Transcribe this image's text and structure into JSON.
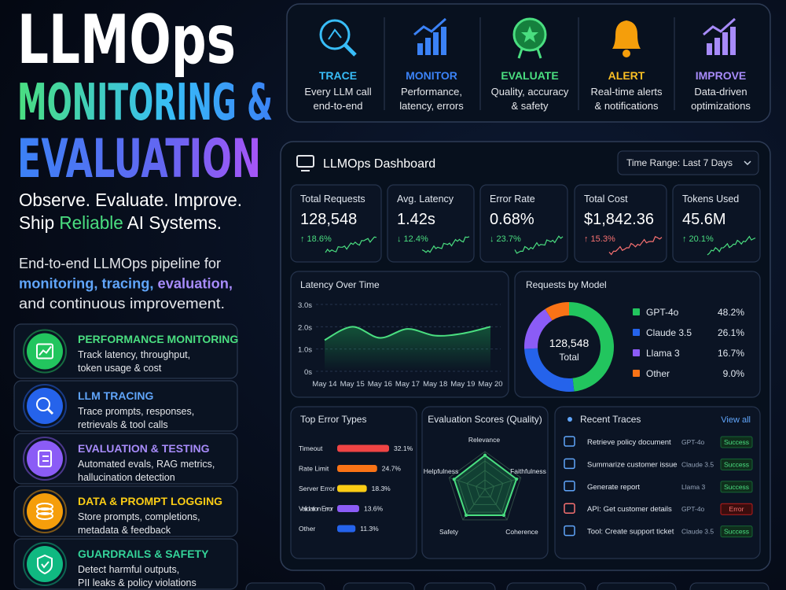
{
  "hero": {
    "title": "LLMOps",
    "title_line2": "MONITORING &",
    "title_line3": "EVALUATION",
    "tagline_1": "Observe. Evaluate. Improve.",
    "tagline_2": [
      "Ship ",
      "Reliable",
      " AI Systems."
    ],
    "description": [
      [
        "End-to-end LLMOps pipeline for"
      ],
      [
        "monitoring, ",
        "tracing, ",
        "evaluation,"
      ],
      [
        "and continuous improvement."
      ]
    ]
  },
  "features": [
    {
      "title": "PERFORMANCE MONITORING",
      "lines": [
        "Track latency, throughput,",
        "token usage & cost"
      ],
      "color": "#22c55e",
      "title_color": "#4ade80"
    },
    {
      "title": "LLM TRACING",
      "lines": [
        "Trace prompts, responses,",
        "retrievals & tool calls"
      ],
      "color": "#2563eb",
      "title_color": "#60a5fa"
    },
    {
      "title": "EVALUATION & TESTING",
      "lines": [
        "Automated evals, RAG metrics,",
        "hallucination detection"
      ],
      "color": "#8b5cf6",
      "title_color": "#a78bfa"
    },
    {
      "title": "DATA & PROMPT LOGGING",
      "lines": [
        "Store prompts, completions,",
        "metadata & feedback"
      ],
      "color": "#f59e0b",
      "title_color": "#facc15"
    },
    {
      "title": "GUARDRAILS & SAFETY",
      "lines": [
        "Detect harmful outputs,",
        "PII leaks & policy violations"
      ],
      "color": "#10b981",
      "title_color": "#34d399"
    }
  ],
  "pipeline": [
    {
      "title": "TRACE",
      "lines": [
        "Every LLM call",
        "end-to-end"
      ],
      "color": "#38bdf8"
    },
    {
      "title": "MONITOR",
      "lines": [
        "Performance,",
        "latency, errors"
      ],
      "color": "#3b82f6"
    },
    {
      "title": "EVALUATE",
      "lines": [
        "Quality, accuracy",
        "& safety"
      ],
      "color": "#4ade80"
    },
    {
      "title": "ALERT",
      "lines": [
        "Real-time alerts",
        "& notifications"
      ],
      "color": "#fbbf24"
    },
    {
      "title": "IMPROVE",
      "lines": [
        "Data-driven",
        "optimizations"
      ],
      "color": "#a78bfa"
    }
  ],
  "dashboard": {
    "title": "LLMOps Dashboard",
    "time_range": "Time Range: Last 7 Days",
    "kpis": [
      {
        "label": "Total Requests",
        "value": "128,548",
        "change": "↑ 18.6%",
        "change_color": "#4ade80"
      },
      {
        "label": "Avg. Latency",
        "value": "1.42s",
        "change": "↓ 12.4%",
        "change_color": "#4ade80"
      },
      {
        "label": "Error Rate",
        "value": "0.68%",
        "change": "↓ 23.7%",
        "change_color": "#4ade80"
      },
      {
        "label": "Total Cost",
        "value": "$1,842.36",
        "change": "↑ 15.3%",
        "change_color": "#f87171"
      },
      {
        "label": "Tokens Used",
        "value": "45.6M",
        "change": "↑ 20.1%",
        "change_color": "#4ade80"
      }
    ]
  },
  "chart_data": [
    {
      "type": "line",
      "title": "Latency Over Time",
      "categories": [
        "May 14",
        "May 15",
        "May 16",
        "May 17",
        "May 18",
        "May 19",
        "May 20"
      ],
      "values": [
        1.4,
        2.0,
        1.5,
        1.9,
        1.6,
        1.7,
        2.0
      ],
      "color": "#4ade80",
      "ylim": [
        0,
        3
      ],
      "yticks": [
        {
          "value": 0,
          "label": "0s"
        },
        {
          "value": 1,
          "label": "1.0s"
        },
        {
          "value": 2,
          "label": "2.0s"
        },
        {
          "value": 3,
          "label": "3.0s"
        }
      ],
      "grid": true
    },
    {
      "type": "donut",
      "title": "Requests by Model",
      "categories": [
        "GPT-4o",
        "Claude 3.5",
        "Llama 3",
        "Other"
      ],
      "values": [
        48.2,
        26.1,
        16.7,
        9.0
      ],
      "value_labels": [
        "48.2%",
        "26.1%",
        "16.7%",
        "9.0%"
      ],
      "colors": [
        "#22c55e",
        "#2563eb",
        "#8b5cf6",
        "#f97316"
      ],
      "center_value": "128,548",
      "center_label": "Total"
    },
    {
      "type": "hbar",
      "title": "Top Error Types",
      "categories": [
        "Timeout",
        "Rate Limit",
        "Server Error",
        "Validation Error",
        "Other"
      ],
      "values": [
        32.1,
        24.7,
        18.3,
        13.6,
        11.3
      ],
      "value_labels": [
        "32.1%",
        "24.7%",
        "18.3%",
        "13.6%",
        "11.3%"
      ],
      "colors": [
        "#ef4444",
        "#f97316",
        "#facc15",
        "#8b5cf6",
        "#2563eb"
      ],
      "xlim": [
        0,
        35
      ]
    },
    {
      "type": "radar",
      "title": "Evaluation Scores (Quality)",
      "categories": [
        "Relevance",
        "Faithfulness",
        "Coherence",
        "Safety",
        "Helpfulness"
      ],
      "values": [
        0.9,
        0.88,
        0.85,
        0.85,
        0.86
      ],
      "rlim": [
        0,
        1
      ],
      "color": "#4ade80"
    }
  ],
  "traces": {
    "title": "Recent Traces",
    "link": "View all",
    "rows": [
      {
        "name": "Retrieve policy document",
        "model": "GPT-4o",
        "status": "Success"
      },
      {
        "name": "Summarize customer issue",
        "model": "Claude 3.5",
        "status": "Success"
      },
      {
        "name": "Generate report",
        "model": "Llama 3",
        "status": "Success"
      },
      {
        "name": "API: Get customer details",
        "model": "GPT-4o",
        "status": "Error"
      },
      {
        "name": "Tool: Create support ticket",
        "model": "Claude 3.5",
        "status": "Success"
      }
    ]
  }
}
